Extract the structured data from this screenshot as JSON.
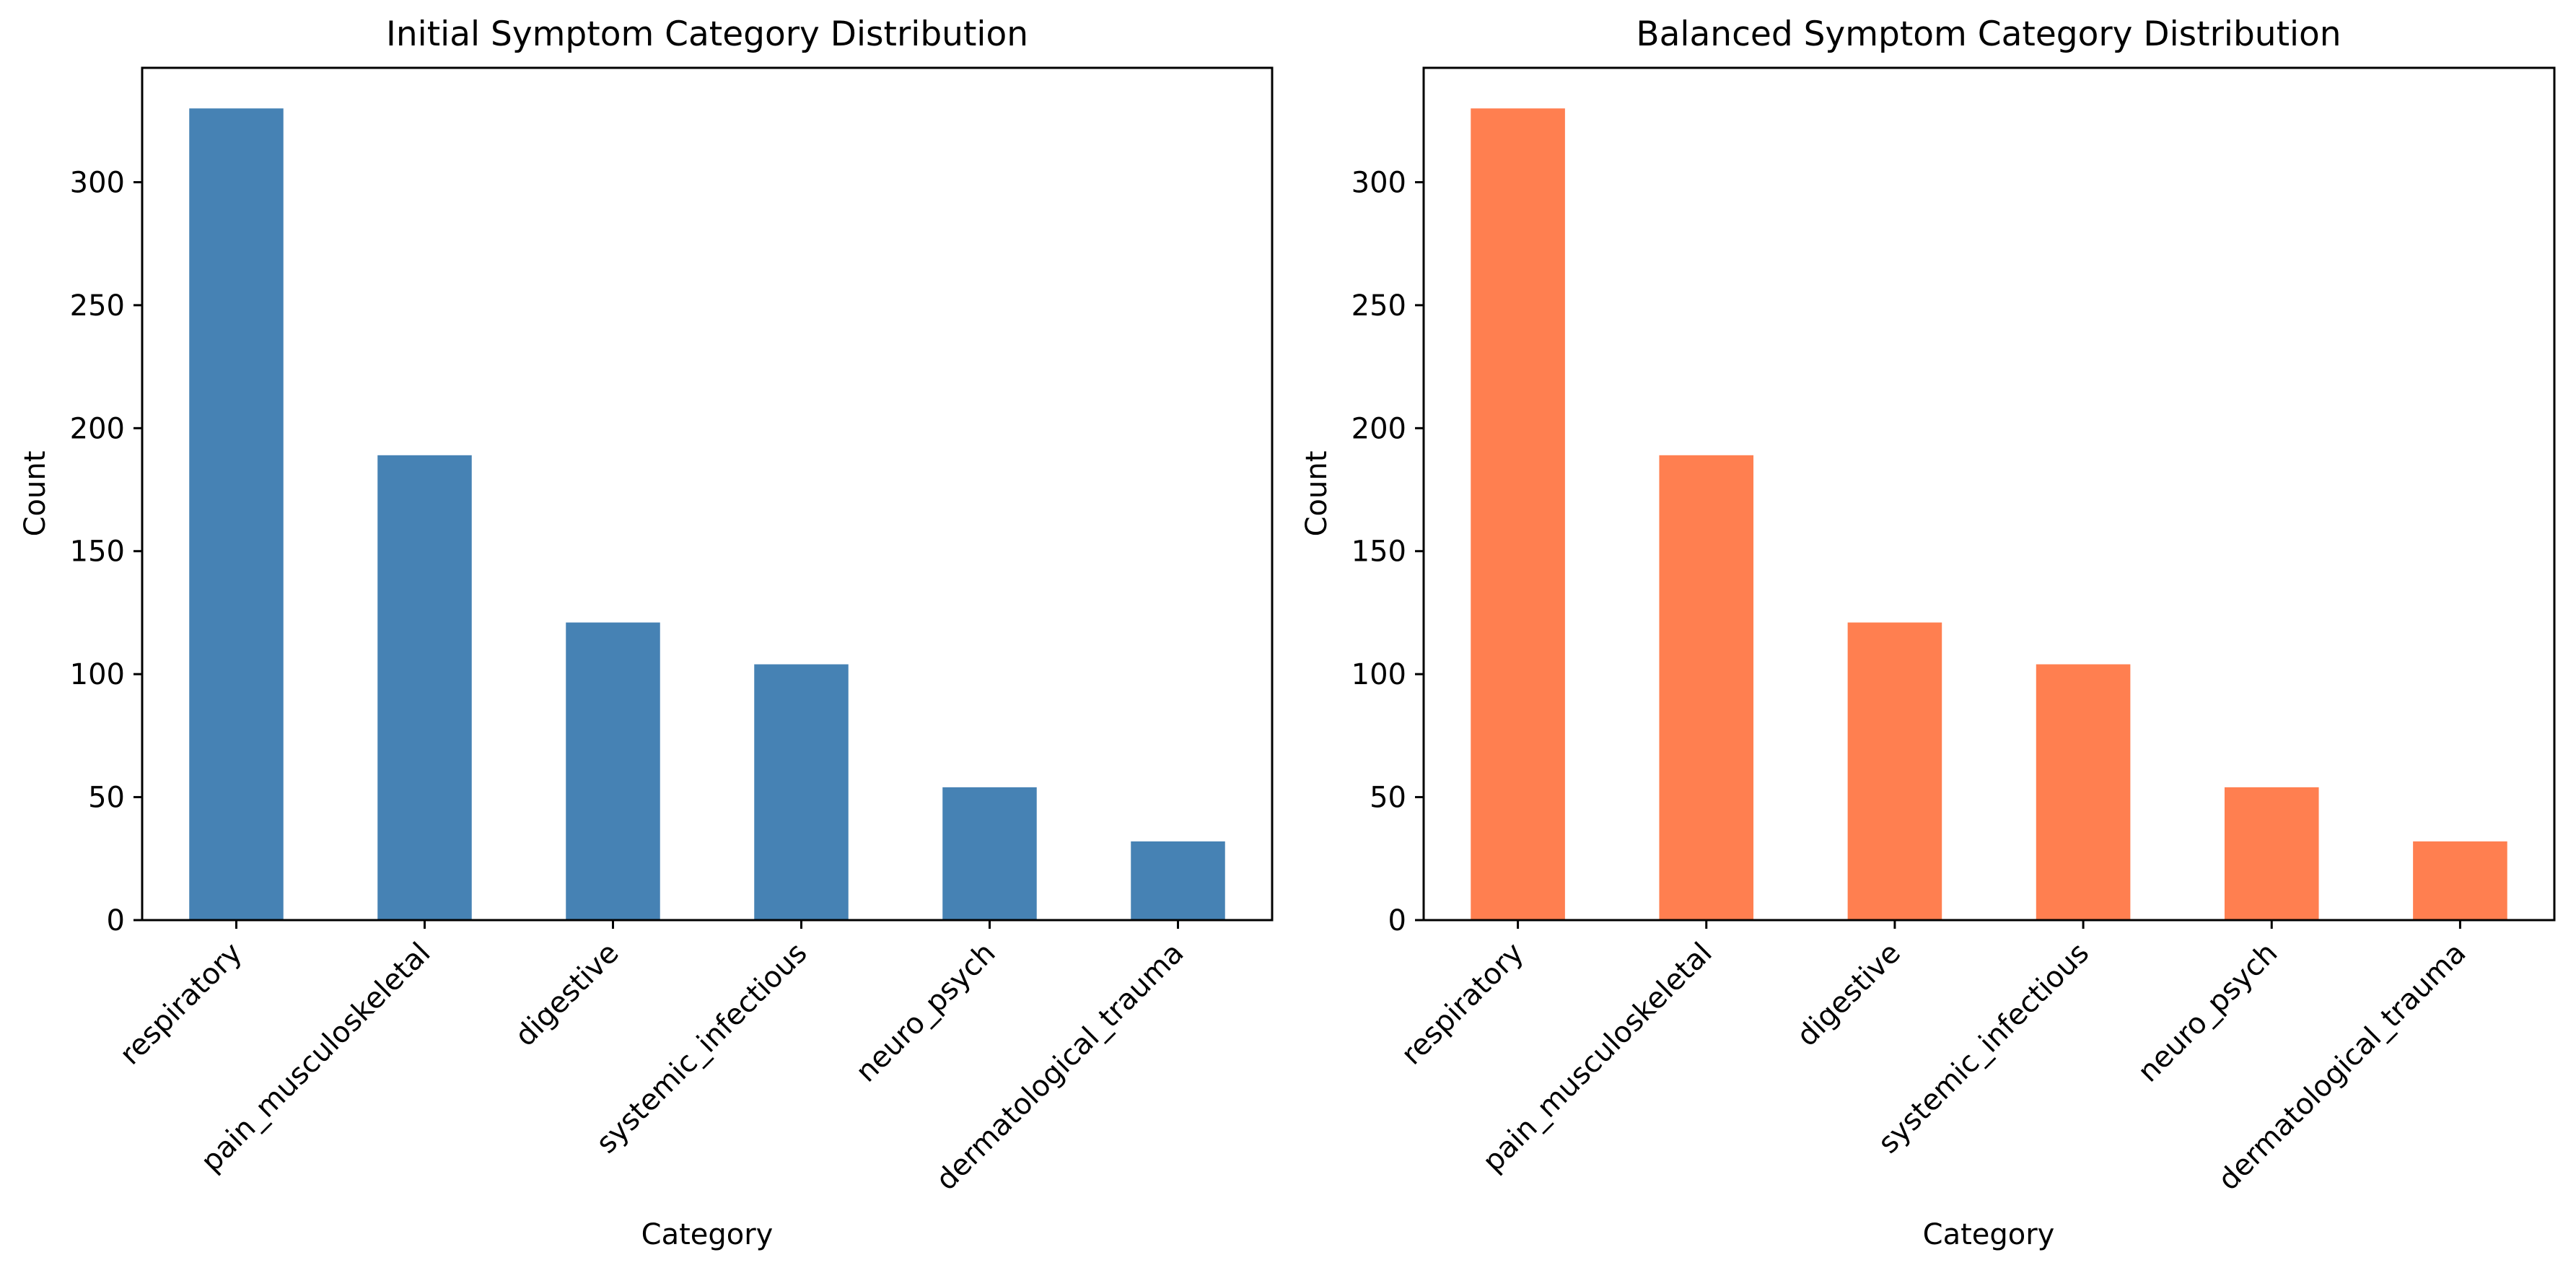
{
  "chart_data": [
    {
      "type": "bar",
      "title": "Initial Symptom Category Distribution",
      "xlabel": "Category",
      "ylabel": "Count",
      "categories": [
        "respiratory",
        "pain_musculoskeletal",
        "digestive",
        "systemic_infectious",
        "neuro_psych",
        "dermatological_trauma"
      ],
      "values": [
        330,
        189,
        121,
        104,
        54,
        32
      ],
      "ylim": [
        0,
        346.5
      ],
      "yticks": [
        0,
        50,
        100,
        150,
        200,
        250,
        300
      ],
      "grid": false,
      "legend": "none",
      "bar_color": "#4682b4"
    },
    {
      "type": "bar",
      "title": "Balanced Symptom Category Distribution",
      "xlabel": "Category",
      "ylabel": "Count",
      "categories": [
        "respiratory",
        "pain_musculoskeletal",
        "digestive",
        "systemic_infectious",
        "neuro_psych",
        "dermatological_trauma"
      ],
      "values": [
        330,
        189,
        121,
        104,
        54,
        32
      ],
      "ylim": [
        0,
        346.5
      ],
      "yticks": [
        0,
        50,
        100,
        150,
        200,
        250,
        300
      ],
      "grid": false,
      "legend": "none",
      "bar_color": "#ff7f50"
    }
  ]
}
